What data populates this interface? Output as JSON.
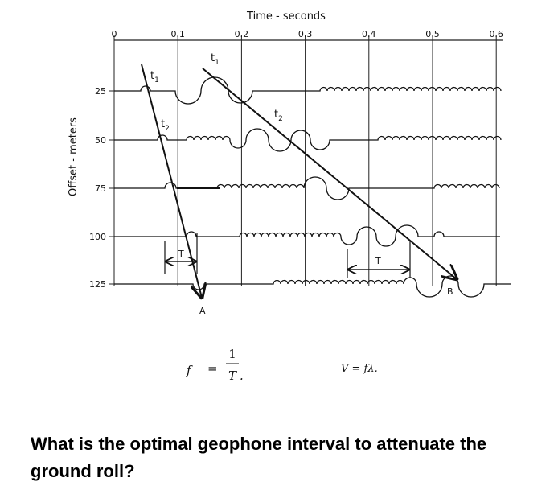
{
  "axis": {
    "x_title": "Time - seconds",
    "x_labels": [
      "0",
      "0.1",
      "0.2",
      "0.3",
      "0.4",
      "0.5",
      "0.6"
    ],
    "y_title": "Offset - meters",
    "y_labels": [
      "25",
      "50",
      "75",
      "100",
      "125"
    ]
  },
  "annotations": {
    "t1_direct": {
      "base": "t",
      "sub": "1"
    },
    "t2_direct": {
      "base": "t",
      "sub": "2"
    },
    "t1_roll": {
      "base": "t",
      "sub": "1"
    },
    "t2_roll": {
      "base": "t",
      "sub": "2"
    },
    "period_direct": "T",
    "period_roll": "T",
    "label_a": "A",
    "label_b": "B"
  },
  "formulas": {
    "frequency": {
      "lhs": "f",
      "eq": "=",
      "num": "1",
      "den": "T",
      "end": "."
    },
    "velocity": "V = fλ."
  },
  "question": "What is the optimal geophone interval to attenuate the ground roll?"
}
